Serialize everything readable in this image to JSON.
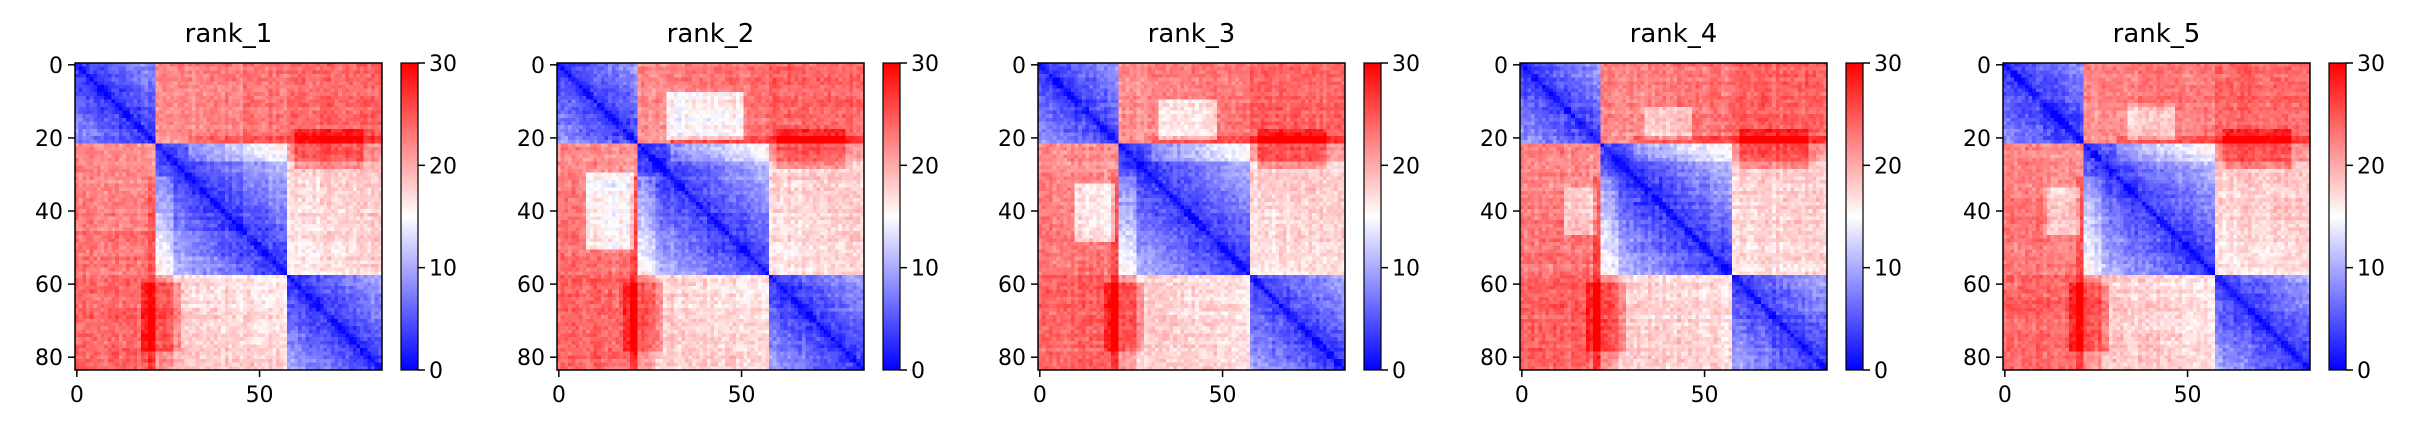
{
  "colors": {
    "low": "#0000ff",
    "mid": "#ffffff",
    "high": "#ff0000",
    "frame": "#000000"
  },
  "chart_data": [
    {
      "type": "heatmap",
      "title": "rank_1",
      "xlim": [
        0,
        83
      ],
      "ylim": [
        83,
        0
      ],
      "x_ticks": [
        0,
        50
      ],
      "y_ticks": [
        0,
        20,
        40,
        60,
        80
      ],
      "colorbar": {
        "range": [
          0,
          30
        ],
        "ticks": [
          0,
          10,
          20,
          30
        ],
        "colormap": "bwr"
      }
    },
    {
      "type": "heatmap",
      "title": "rank_2",
      "xlim": [
        0,
        83
      ],
      "ylim": [
        83,
        0
      ],
      "x_ticks": [
        0,
        50
      ],
      "y_ticks": [
        0,
        20,
        40,
        60,
        80
      ],
      "colorbar": {
        "range": [
          0,
          30
        ],
        "ticks": [
          0,
          10,
          20,
          30
        ],
        "colormap": "bwr"
      }
    },
    {
      "type": "heatmap",
      "title": "rank_3",
      "xlim": [
        0,
        83
      ],
      "ylim": [
        83,
        0
      ],
      "x_ticks": [
        0,
        50
      ],
      "y_ticks": [
        0,
        20,
        40,
        60,
        80
      ],
      "colorbar": {
        "range": [
          0,
          30
        ],
        "ticks": [
          0,
          10,
          20,
          30
        ],
        "colormap": "bwr"
      }
    },
    {
      "type": "heatmap",
      "title": "rank_4",
      "xlim": [
        0,
        83
      ],
      "ylim": [
        83,
        0
      ],
      "x_ticks": [
        0,
        50
      ],
      "y_ticks": [
        0,
        20,
        40,
        60,
        80
      ],
      "colorbar": {
        "range": [
          0,
          30
        ],
        "ticks": [
          0,
          10,
          20,
          30
        ],
        "colormap": "bwr"
      }
    },
    {
      "type": "heatmap",
      "title": "rank_5",
      "xlim": [
        0,
        83
      ],
      "ylim": [
        83,
        0
      ],
      "x_ticks": [
        0,
        50
      ],
      "y_ticks": [
        0,
        20,
        40,
        60,
        80
      ],
      "colorbar": {
        "range": [
          0,
          30
        ],
        "ticks": [
          0,
          10,
          20,
          30
        ],
        "colormap": "bwr"
      }
    }
  ]
}
